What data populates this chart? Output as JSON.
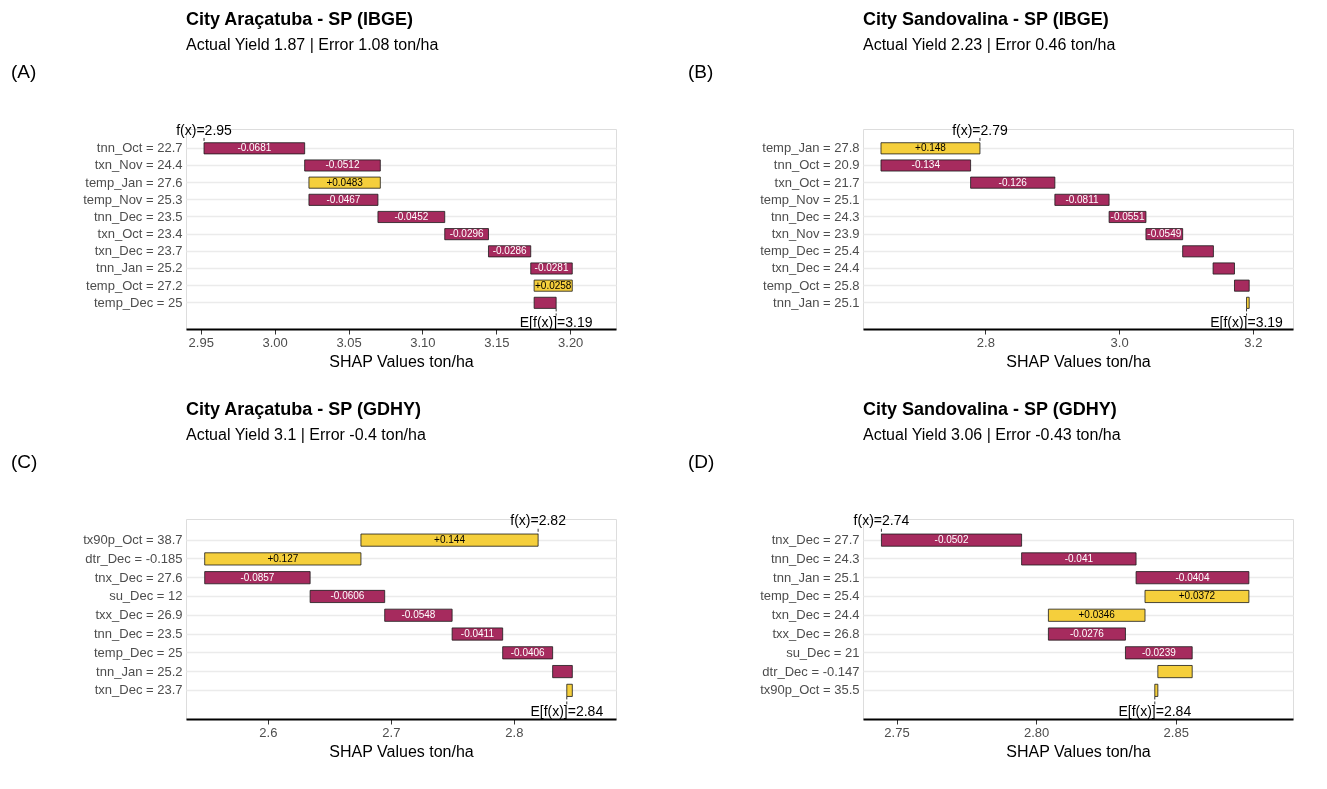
{
  "chart_data": [
    {
      "type": "bar",
      "orientation": "horizontal",
      "title": "City Araçatuba - SP (IBGE)",
      "subtitle": "Actual Yield  1.87 | Error  1.08  ton/ha",
      "xlabel": "SHAP Values ton/ha",
      "categories": [
        "tnn_Oct = 22.7",
        "txn_Nov = 24.4",
        "temp_Jan = 27.6",
        "temp_Nov = 25.3",
        "tnn_Dec = 23.5",
        "txn_Oct = 23.4",
        "txn_Dec = 23.7",
        "tnn_Jan = 25.2",
        "temp_Oct = 27.2",
        "temp_Dec = 25"
      ],
      "values": [
        -0.0681,
        -0.0512,
        0.0483,
        -0.0467,
        -0.0452,
        -0.0296,
        -0.0286,
        -0.0281,
        0.0258,
        -0.0149
      ],
      "base": [
        3.0203,
        3.0715,
        3.0232,
        3.0699,
        3.1151,
        3.1447,
        3.1733,
        3.2014,
        3.1756,
        3.1905
      ],
      "colors": [
        "#a62b5e",
        "#a62b5e",
        "#f5cf3c",
        "#a62b5e",
        "#a62b5e",
        "#a62b5e",
        "#a62b5e",
        "#a62b5e",
        "#f5cf3c",
        "#a62b5e"
      ],
      "value_labels": [
        "-0.0681",
        "-0.0512",
        "+0.0483",
        "-0.0467",
        "-0.0452",
        "-0.0296",
        "-0.0286",
        "-0.0281",
        "+0.0258",
        null
      ],
      "xlim": [
        2.94,
        3.231
      ],
      "xticks": [
        2.95,
        {
          "value": 3,
          "label": "3.00"
        },
        3.05,
        {
          "value": 3.1,
          "label": "3.10"
        },
        3.15,
        {
          "value": 3.2,
          "label": "3.20"
        }
      ],
      "grid": "y",
      "annotations": [
        "(A)",
        "f(x)=2.95",
        "E[f(x)]=3.19"
      ]
    },
    {
      "type": "bar",
      "orientation": "horizontal",
      "title": "City Sandovalina  - SP (IBGE)",
      "subtitle": "Actual Yield  2.23 | Error  0.46  ton/ha",
      "xlabel": "SHAP Values ton/ha",
      "categories": [
        "temp_Jan = 27.8",
        "tnn_Oct = 20.9",
        "txn_Oct = 21.7",
        "temp_Nov = 25.1",
        "tnn_Dec = 24.3",
        "txn_Nov = 23.9",
        "temp_Dec = 25.4",
        "txn_Dec = 24.4",
        "temp_Oct = 25.8",
        "tnn_Jan = 25.1"
      ],
      "values": [
        0.148,
        -0.134,
        -0.126,
        -0.0811,
        -0.0551,
        -0.0549,
        -0.046,
        -0.032,
        -0.022,
        0.004
      ],
      "base": [
        2.6439,
        2.7779,
        2.9039,
        2.985,
        3.0401,
        3.095,
        3.141,
        3.1725,
        3.1945,
        3.1905
      ],
      "colors": [
        "#f5cf3c",
        "#a62b5e",
        "#a62b5e",
        "#a62b5e",
        "#a62b5e",
        "#a62b5e",
        "#a62b5e",
        "#a62b5e",
        "#a62b5e",
        "#f5cf3c"
      ],
      "value_labels": [
        "+0.148",
        "-0.134",
        "-0.126",
        "-0.0811",
        "-0.0551",
        "-0.0549",
        null,
        null,
        null,
        null
      ],
      "xlim": [
        2.617,
        3.26
      ],
      "xticks": [
        2.8,
        {
          "value": 3,
          "label": "3.0"
        },
        3.2
      ],
      "grid": "y",
      "annotations": [
        "(B)",
        "f(x)=2.79",
        "E[f(x)]=3.19"
      ]
    },
    {
      "type": "bar",
      "orientation": "horizontal",
      "title": "City Araçatuba  - SP (GDHY)",
      "subtitle": "Actual Yield  3.1 | Error  -0.4  ton/ha",
      "xlabel": "SHAP Values ton/ha",
      "categories": [
        "tx90p_Oct = 38.7",
        "dtr_Dec = -0.185",
        "tnx_Dec = 27.6",
        "su_Dec = 12",
        "txx_Dec = 26.9",
        "tnn_Dec = 23.5",
        "temp_Dec = 25",
        "tnn_Jan = 25.2",
        "txn_Dec = 23.7"
      ],
      "values": [
        0.144,
        0.127,
        -0.0857,
        -0.0606,
        -0.0548,
        -0.0411,
        -0.0406,
        -0.016,
        0.0045
      ],
      "base": [
        2.6757,
        2.5487,
        2.6344,
        2.695,
        2.7498,
        2.7909,
        2.8315,
        2.8475,
        2.843
      ],
      "colors": [
        "#f5cf3c",
        "#f5cf3c",
        "#a62b5e",
        "#a62b5e",
        "#a62b5e",
        "#a62b5e",
        "#a62b5e",
        "#a62b5e",
        "#f5cf3c"
      ],
      "value_labels": [
        "+0.144",
        "+0.127",
        "-0.0857",
        "-0.0606",
        "-0.0548",
        "-0.0411",
        "-0.0406",
        null,
        null
      ],
      "xlim": [
        2.5335,
        2.883
      ],
      "xticks": [
        2.6,
        2.7,
        2.8
      ],
      "grid": "y",
      "annotations": [
        "(C)",
        "f(x)=2.82",
        "E[f(x)]=2.84"
      ]
    },
    {
      "type": "bar",
      "orientation": "horizontal",
      "title": "City Sandovalina  - SP (GDHY)",
      "subtitle": "Actual Yield  3.06 | Error  -0.43  ton/ha",
      "xlabel": "SHAP Values ton/ha",
      "categories": [
        "tnx_Dec = 27.7",
        "tnn_Dec = 24.3",
        "tnn_Jan = 25.1",
        "temp_Dec = 25.4",
        "txn_Dec = 24.4",
        "txx_Dec = 26.8",
        "su_Dec = 21",
        "dtr_Dec = -0.147",
        "tx90p_Oct = 35.5"
      ],
      "values": [
        -0.0502,
        -0.041,
        -0.0404,
        0.0372,
        0.0346,
        -0.0276,
        -0.0239,
        0.0123,
        0.0011
      ],
      "base": [
        2.7948,
        2.8358,
        2.8762,
        2.839,
        2.8044,
        2.832,
        2.8559,
        2.8436,
        2.8425
      ],
      "colors": [
        "#a62b5e",
        "#a62b5e",
        "#a62b5e",
        "#f5cf3c",
        "#f5cf3c",
        "#a62b5e",
        "#a62b5e",
        "#f5cf3c",
        "#f5cf3c"
      ],
      "value_labels": [
        "-0.0502",
        "-0.041",
        "-0.0404",
        "+0.0372",
        "+0.0346",
        "-0.0276",
        "-0.0239",
        null,
        null
      ],
      "xlim": [
        2.738,
        2.892
      ],
      "xticks": [
        2.75,
        {
          "value": 2.8,
          "label": "2.80"
        },
        2.85
      ],
      "grid": "y",
      "annotations": [
        "(D)",
        "f(x)=2.74",
        "E[f(x)]=2.84"
      ]
    }
  ]
}
